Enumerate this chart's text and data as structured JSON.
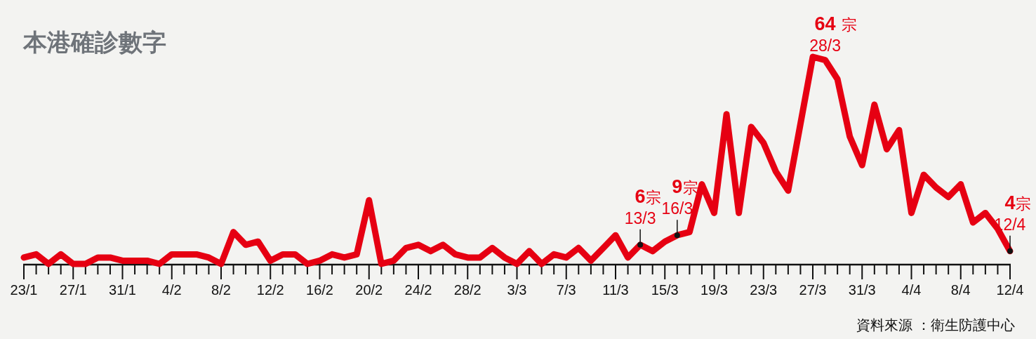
{
  "chart_data": {
    "type": "line",
    "title": "本港確診數字",
    "x": [
      "--01-23",
      "--01-24",
      "--01-25",
      "--01-26",
      "--01-27",
      "--01-28",
      "--01-29",
      "--01-30",
      "--01-31",
      "--02-01",
      "--02-02",
      "--02-03",
      "--02-04",
      "--02-05",
      "--02-06",
      "--02-07",
      "--02-08",
      "--02-09",
      "--02-10",
      "--02-11",
      "--02-12",
      "--02-13",
      "--02-14",
      "--02-15",
      "--02-16",
      "--02-17",
      "--02-18",
      "--02-19",
      "--02-20",
      "--02-21",
      "--02-22",
      "--02-23",
      "--02-24",
      "--02-25",
      "--02-26",
      "--02-27",
      "--02-28",
      "--02-29",
      "--03-01",
      "--03-02",
      "--03-03",
      "--03-04",
      "--03-05",
      "--03-06",
      "--03-07",
      "--03-08",
      "--03-09",
      "--03-10",
      "--03-11",
      "--03-12",
      "--03-13",
      "--03-14",
      "--03-15",
      "--03-16",
      "--03-17",
      "--03-18",
      "--03-19",
      "--03-20",
      "--03-21",
      "--03-22",
      "--03-23",
      "--03-24",
      "--03-25",
      "--03-26",
      "--03-27",
      "--03-28",
      "--03-29",
      "--03-30",
      "--03-31",
      "--04-01",
      "--04-02",
      "--04-03",
      "--04-04",
      "--04-05",
      "--04-06",
      "--04-07",
      "--04-08",
      "--04-09",
      "--04-10",
      "--04-11",
      "--04-12"
    ],
    "series": [
      {
        "color": "#e60012",
        "values": [
          2,
          3,
          0,
          3,
          0,
          0,
          2,
          2,
          1,
          1,
          1,
          0,
          3,
          3,
          3,
          2,
          0,
          10,
          6,
          7,
          1,
          3,
          3,
          0,
          1,
          3,
          2,
          3,
          20,
          0,
          1,
          5,
          6,
          4,
          6,
          3,
          2,
          2,
          5,
          2,
          0,
          4,
          0,
          3,
          2,
          5,
          1,
          5,
          9,
          2,
          6,
          4,
          7,
          9,
          10,
          25,
          16,
          47,
          16,
          43,
          38,
          29,
          23,
          44,
          65,
          64,
          58,
          40,
          31,
          50,
          36,
          42,
          16,
          28,
          24,
          21,
          25,
          13,
          16,
          11,
          4
        ],
        "value_labels": [
          null,
          null,
          null,
          null,
          null,
          null,
          null,
          null,
          null,
          null,
          null,
          null,
          null,
          null,
          null,
          null,
          null,
          null,
          null,
          null,
          null,
          null,
          null,
          null,
          null,
          null,
          null,
          null,
          null,
          null,
          null,
          null,
          null,
          null,
          null,
          null,
          null,
          null,
          null,
          null,
          null,
          null,
          null,
          null,
          null,
          null,
          null,
          null,
          null,
          null,
          "6宗",
          null,
          null,
          "9宗",
          null,
          null,
          null,
          null,
          null,
          null,
          null,
          null,
          null,
          null,
          null,
          "64宗",
          null,
          null,
          null,
          null,
          null,
          null,
          null,
          null,
          null,
          null,
          null,
          null,
          null,
          null,
          "4宗"
        ]
      }
    ],
    "xlim": [
      "--01-23",
      "--04-12"
    ],
    "xticks": [
      {
        "value": "--01-23",
        "label": "23/1"
      },
      {
        "value": "--01-24",
        "label": null
      },
      {
        "value": "--01-25",
        "label": null
      },
      {
        "value": "--01-26",
        "label": null
      },
      {
        "value": "--01-27",
        "label": "27/1"
      },
      {
        "value": "--01-28",
        "label": null
      },
      {
        "value": "--01-29",
        "label": null
      },
      {
        "value": "--01-30",
        "label": null
      },
      {
        "value": "--01-31",
        "label": "31/1"
      },
      {
        "value": "--02-01",
        "label": null
      },
      {
        "value": "--02-02",
        "label": null
      },
      {
        "value": "--02-03",
        "label": null
      },
      {
        "value": "--02-04",
        "label": "4/2"
      },
      {
        "value": "--02-05",
        "label": null
      },
      {
        "value": "--02-06",
        "label": null
      },
      {
        "value": "--02-07",
        "label": null
      },
      {
        "value": "--02-08",
        "label": "8/2"
      },
      {
        "value": "--02-09",
        "label": null
      },
      {
        "value": "--02-10",
        "label": null
      },
      {
        "value": "--02-11",
        "label": null
      },
      {
        "value": "--02-12",
        "label": "12/2"
      },
      {
        "value": "--02-13",
        "label": null
      },
      {
        "value": "--02-14",
        "label": null
      },
      {
        "value": "--02-15",
        "label": null
      },
      {
        "value": "--02-16",
        "label": "16/2"
      },
      {
        "value": "--02-17",
        "label": null
      },
      {
        "value": "--02-18",
        "label": null
      },
      {
        "value": "--02-19",
        "label": null
      },
      {
        "value": "--02-20",
        "label": "20/2"
      },
      {
        "value": "--02-21",
        "label": null
      },
      {
        "value": "--02-22",
        "label": null
      },
      {
        "value": "--02-23",
        "label": null
      },
      {
        "value": "--02-24",
        "label": "24/2"
      },
      {
        "value": "--02-25",
        "label": null
      },
      {
        "value": "--02-26",
        "label": null
      },
      {
        "value": "--02-27",
        "label": null
      },
      {
        "value": "--02-28",
        "label": "28/2"
      },
      {
        "value": "--02-29",
        "label": null
      },
      {
        "value": "--03-01",
        "label": null
      },
      {
        "value": "--03-02",
        "label": null
      },
      {
        "value": "--03-03",
        "label": "3/3"
      },
      {
        "value": "--03-04",
        "label": null
      },
      {
        "value": "--03-05",
        "label": null
      },
      {
        "value": "--03-06",
        "label": null
      },
      {
        "value": "--03-07",
        "label": "7/3"
      },
      {
        "value": "--03-08",
        "label": null
      },
      {
        "value": "--03-09",
        "label": null
      },
      {
        "value": "--03-10",
        "label": null
      },
      {
        "value": "--03-11",
        "label": "11/3"
      },
      {
        "value": "--03-12",
        "label": null
      },
      {
        "value": "--03-13",
        "label": null
      },
      {
        "value": "--03-14",
        "label": null
      },
      {
        "value": "--03-15",
        "label": "15/3"
      },
      {
        "value": "--03-16",
        "label": null
      },
      {
        "value": "--03-17",
        "label": null
      },
      {
        "value": "--03-18",
        "label": null
      },
      {
        "value": "--03-19",
        "label": "19/3"
      },
      {
        "value": "--03-20",
        "label": null
      },
      {
        "value": "--03-21",
        "label": null
      },
      {
        "value": "--03-22",
        "label": null
      },
      {
        "value": "--03-23",
        "label": "23/3"
      },
      {
        "value": "--03-24",
        "label": null
      },
      {
        "value": "--03-25",
        "label": null
      },
      {
        "value": "--03-26",
        "label": null
      },
      {
        "value": "--03-27",
        "label": "27/3"
      },
      {
        "value": "--03-28",
        "label": null
      },
      {
        "value": "--03-29",
        "label": null
      },
      {
        "value": "--03-30",
        "label": null
      },
      {
        "value": "--03-31",
        "label": "31/3"
      },
      {
        "value": "--04-01",
        "label": null
      },
      {
        "value": "--04-02",
        "label": null
      },
      {
        "value": "--04-03",
        "label": null
      },
      {
        "value": "--04-04",
        "label": "4/4"
      },
      {
        "value": "--04-05",
        "label": null
      },
      {
        "value": "--04-06",
        "label": null
      },
      {
        "value": "--04-07",
        "label": null
      },
      {
        "value": "--04-08",
        "label": "8/4"
      },
      {
        "value": "--04-09",
        "label": null
      },
      {
        "value": "--04-10",
        "label": null
      },
      {
        "value": "--04-11",
        "label": null
      },
      {
        "value": "--04-12",
        "label": "12/4"
      }
    ],
    "tick_labels": "x",
    "marker": "none",
    "line_style": "solid",
    "annotations": [
      {
        "text": "13/3",
        "x": "--03-13",
        "y": 6
      },
      {
        "text": "16/3",
        "x": "--03-16",
        "y": 9
      },
      {
        "text": "28/3",
        "x": "--03-28",
        "y": 64
      },
      {
        "text": "12/4",
        "x": "--04-12",
        "y": 4
      },
      "資料來源 ：衛生防護中心"
    ]
  }
}
